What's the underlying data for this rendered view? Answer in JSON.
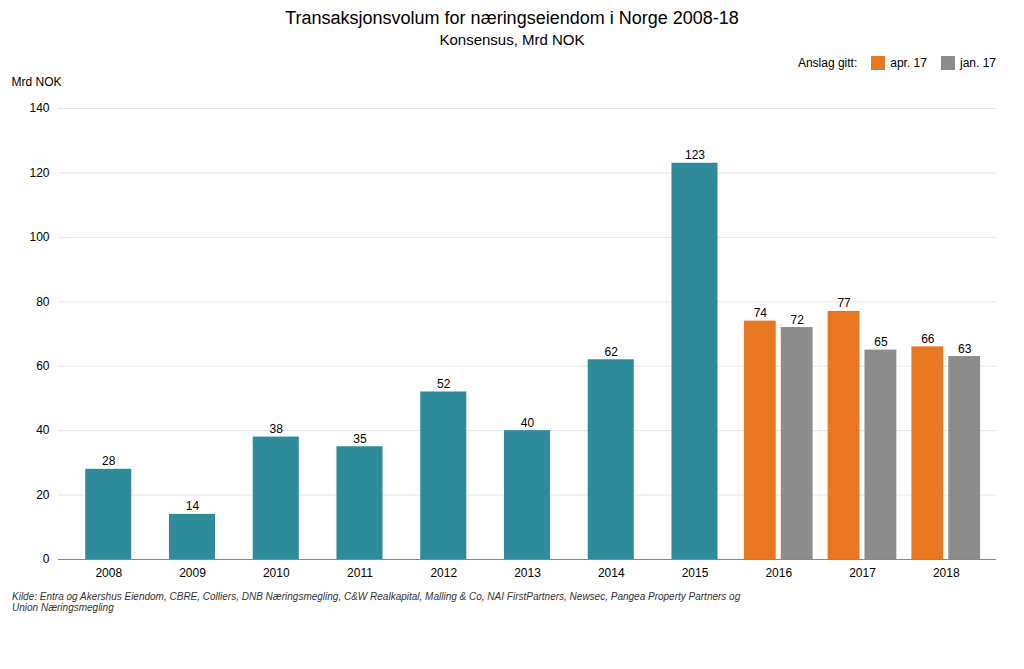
{
  "chart_data": {
    "type": "bar",
    "title": "Transaksjonsvolum for næringseiendom i Norge 2008-18",
    "subtitle": "Konsensus, Mrd NOK",
    "ylabel": "Mrd NOK",
    "categories": [
      "2008",
      "2009",
      "2010",
      "2011",
      "2012",
      "2013",
      "2014",
      "2015",
      "2016",
      "2017",
      "2018"
    ],
    "series": [
      {
        "color": "#2e8b9a",
        "values": [
          28,
          14,
          38,
          35,
          52,
          40,
          62,
          123,
          null,
          null,
          null
        ]
      },
      {
        "name": "apr. 17",
        "color": "#e87722",
        "values": [
          null,
          null,
          null,
          null,
          null,
          null,
          null,
          null,
          74,
          77,
          66
        ]
      },
      {
        "name": "jan. 17",
        "color": "#8c8c8c",
        "values": [
          null,
          null,
          null,
          null,
          null,
          null,
          null,
          null,
          72,
          65,
          63
        ]
      }
    ],
    "legend_title": "Anslag gitt:",
    "legend": "upper right",
    "ylim": [
      0,
      140
    ],
    "yticks": [
      0,
      20,
      40,
      60,
      80,
      100,
      120,
      140
    ],
    "grid": true,
    "data_labels": true,
    "caption": "Kilde: Entra og Akershus Eiendom, CBRE, Colliers, DNB Næringsmegling, C&W Realkapital,  Malling & Co,  NAI FirstPartners, Newsec, Pangea Property Partners og\nUnion Næringsmegling"
  }
}
